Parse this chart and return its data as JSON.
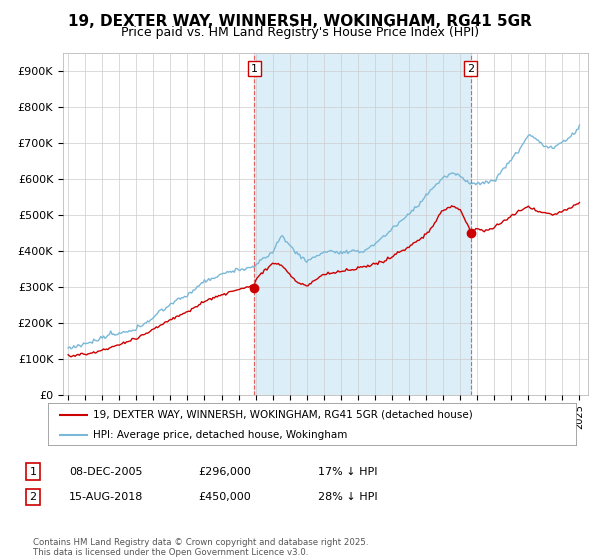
{
  "title": "19, DEXTER WAY, WINNERSH, WOKINGHAM, RG41 5GR",
  "subtitle": "Price paid vs. HM Land Registry's House Price Index (HPI)",
  "ytick_labels": [
    "£0",
    "£100K",
    "£200K",
    "£300K",
    "£400K",
    "£500K",
    "£600K",
    "£700K",
    "£800K",
    "£900K"
  ],
  "yticks": [
    0,
    100000,
    200000,
    300000,
    400000,
    500000,
    600000,
    700000,
    800000,
    900000
  ],
  "xlim_start": 1994.7,
  "xlim_end": 2025.5,
  "ylim_min": 0,
  "ylim_max": 950000,
  "hpi_color": "#7ab8d8",
  "hpi_fill_color": "#dceef7",
  "price_color": "#cc0000",
  "purchase1_x": 2005.93,
  "purchase1_y": 296000,
  "purchase2_x": 2018.62,
  "purchase2_y": 450000,
  "vline_color": "#e06060",
  "legend_price_label": "19, DEXTER WAY, WINNERSH, WOKINGHAM, RG41 5GR (detached house)",
  "legend_hpi_label": "HPI: Average price, detached house, Wokingham",
  "table_row1": [
    "1",
    "08-DEC-2005",
    "£296,000",
    "17% ↓ HPI"
  ],
  "table_row2": [
    "2",
    "15-AUG-2018",
    "£450,000",
    "28% ↓ HPI"
  ],
  "footnote": "Contains HM Land Registry data © Crown copyright and database right 2025.\nThis data is licensed under the Open Government Licence v3.0.",
  "background_color": "#ffffff",
  "grid_color": "#cccccc",
  "title_fontsize": 11,
  "subtitle_fontsize": 9,
  "axis_fontsize": 8
}
